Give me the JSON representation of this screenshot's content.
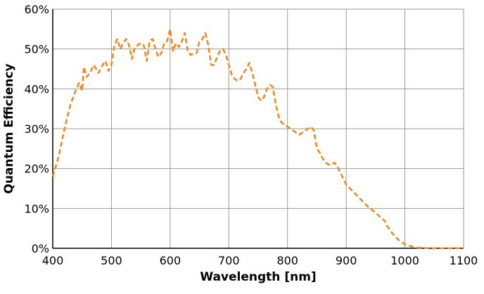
{
  "chart_data": {
    "type": "line",
    "title": "",
    "xlabel": "Wavelength [nm]",
    "ylabel": "Quantum Efficiency",
    "xlim": [
      400,
      1100
    ],
    "ylim": [
      0,
      60
    ],
    "xticks": [
      400,
      500,
      600,
      700,
      800,
      900,
      1000,
      1100
    ],
    "xtick_labels": [
      "400",
      "500",
      "600",
      "700",
      "800",
      "900",
      "1000",
      "1100"
    ],
    "yticks": [
      0,
      10,
      20,
      30,
      40,
      50,
      60
    ],
    "ytick_labels": [
      "0%",
      "10%",
      "20%",
      "30%",
      "40%",
      "50%",
      "60%"
    ],
    "grid": true,
    "legend": "none",
    "line_style": "dashed",
    "colors": {
      "series": "#f08a24",
      "grid": "#9a9a9a",
      "axis": "#000000"
    },
    "series": [
      {
        "x": [
          400,
          410,
          420,
          430,
          440,
          445,
          450,
          453,
          458,
          465,
          470,
          478,
          485,
          490,
          495,
          500,
          505,
          510,
          515,
          520,
          525,
          530,
          535,
          540,
          545,
          550,
          555,
          560,
          565,
          570,
          575,
          580,
          585,
          590,
          595,
          600,
          605,
          610,
          615,
          620,
          625,
          630,
          635,
          640,
          645,
          650,
          655,
          660,
          665,
          670,
          675,
          680,
          685,
          690,
          695,
          700,
          705,
          710,
          715,
          720,
          725,
          730,
          735,
          740,
          745,
          750,
          755,
          760,
          765,
          770,
          775,
          780,
          785,
          790,
          795,
          800,
          805,
          810,
          815,
          820,
          825,
          830,
          835,
          840,
          845,
          850,
          855,
          860,
          865,
          870,
          875,
          880,
          885,
          890,
          900,
          910,
          920,
          930,
          940,
          950,
          960,
          965,
          970,
          980,
          990,
          1000,
          1010,
          1020,
          1030,
          1040,
          1050,
          1060,
          1070,
          1080,
          1090,
          1100
        ],
        "values": [
          18,
          23,
          30,
          36,
          40,
          41.5,
          39.5,
          45.5,
          43,
          44.5,
          46,
          44,
          46,
          47,
          44.5,
          46,
          51,
          52.5,
          50,
          51.5,
          52.5,
          51,
          47.5,
          50.5,
          51,
          51.5,
          51,
          47,
          52,
          52.5,
          50,
          48,
          49,
          51.5,
          52,
          55,
          49.5,
          51.5,
          50.5,
          52,
          54,
          49.5,
          48.5,
          49,
          49,
          52,
          52.5,
          54,
          51,
          46,
          46,
          48,
          49.5,
          50,
          48.5,
          46,
          43.5,
          42.5,
          42,
          42.5,
          44,
          45,
          46.5,
          44,
          41,
          38,
          37,
          38,
          40,
          41,
          40.5,
          36,
          33,
          31.5,
          31,
          30.5,
          30,
          29.5,
          29,
          28.5,
          29,
          29.5,
          30,
          30.5,
          29.5,
          25,
          24,
          22.5,
          21.5,
          21,
          21,
          21.5,
          20.5,
          19,
          16,
          14.5,
          13,
          11.5,
          10,
          9,
          7.5,
          7,
          5.5,
          3.5,
          2,
          1,
          0.5,
          0.2,
          0.1,
          0,
          0,
          0,
          0,
          0,
          0,
          0
        ]
      }
    ]
  }
}
